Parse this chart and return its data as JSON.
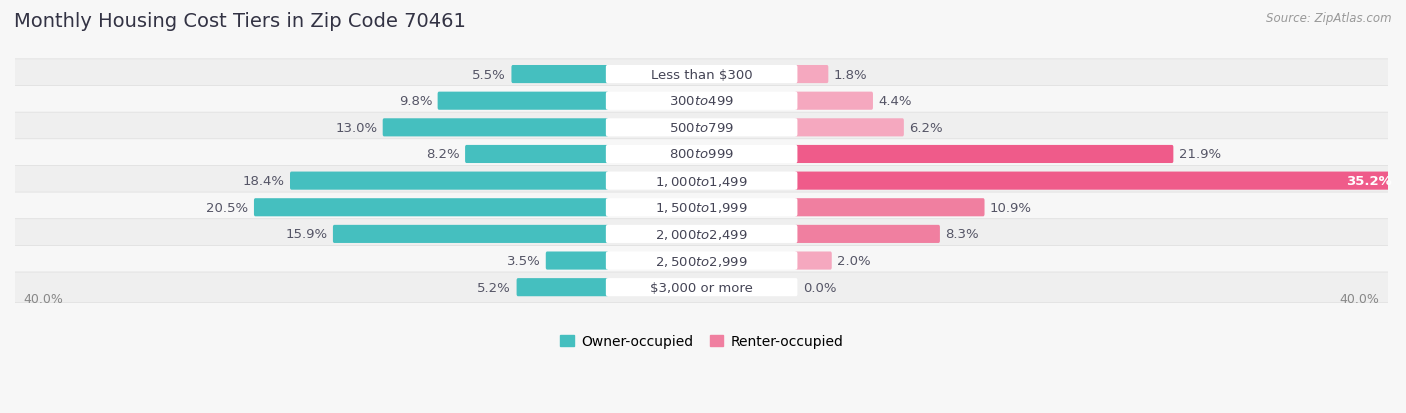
{
  "title": "Monthly Housing Cost Tiers in Zip Code 70461",
  "source": "Source: ZipAtlas.com",
  "categories": [
    "Less than $300",
    "$300 to $499",
    "$500 to $799",
    "$800 to $999",
    "$1,000 to $1,499",
    "$1,500 to $1,999",
    "$2,000 to $2,499",
    "$2,500 to $2,999",
    "$3,000 or more"
  ],
  "owner_values": [
    5.5,
    9.8,
    13.0,
    8.2,
    18.4,
    20.5,
    15.9,
    3.5,
    5.2
  ],
  "renter_values": [
    1.8,
    4.4,
    6.2,
    21.9,
    35.2,
    10.9,
    8.3,
    2.0,
    0.0
  ],
  "owner_color": "#45BFBF",
  "renter_color": "#F07FA0",
  "renter_color_light": "#F5A8BF",
  "renter_color_strong": "#EF5B8A",
  "axis_limit": 40.0,
  "bg_color": "#f7f7f7",
  "row_color_even": "#efefef",
  "row_color_odd": "#f7f7f7",
  "title_fontsize": 14,
  "label_fontsize": 9.5,
  "value_fontsize": 9.5,
  "tick_fontsize": 9,
  "legend_fontsize": 10,
  "source_fontsize": 8.5
}
